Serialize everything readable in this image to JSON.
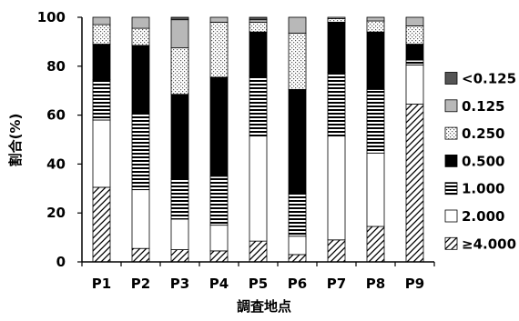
{
  "chart_data": {
    "type": "bar",
    "stacked": true,
    "categories": [
      "P1",
      "P2",
      "P3",
      "P4",
      "P5",
      "P6",
      "P7",
      "P8",
      "P9"
    ],
    "xlabel": "調査地点",
    "ylabel": "割合(%)",
    "ylim": [
      0,
      100
    ],
    "yticks": [
      "0",
      "20",
      "40",
      "60",
      "80",
      "100"
    ],
    "grid": false,
    "legend_position": "right",
    "series": [
      {
        "name": "≥4.000",
        "values": [
          30.5,
          5.5,
          5.0,
          4.5,
          8.5,
          3.0,
          9.0,
          14.5,
          64.5
        ],
        "pattern": "diag"
      },
      {
        "name": "2.000",
        "values": [
          27.5,
          24.0,
          12.5,
          10.5,
          43.0,
          7.5,
          42.5,
          30.0,
          16.0
        ],
        "pattern": "white"
      },
      {
        "name": "1.000",
        "values": [
          16.5,
          31.0,
          16.5,
          20.0,
          24.5,
          17.5,
          26.0,
          26.0,
          2.0
        ],
        "pattern": "hlines"
      },
      {
        "name": "0.500",
        "values": [
          14.5,
          28.0,
          34.5,
          40.5,
          18.0,
          42.5,
          20.5,
          23.5,
          6.5
        ],
        "pattern": "black"
      },
      {
        "name": "0.250",
        "values": [
          8.0,
          7.0,
          19.0,
          22.5,
          4.0,
          23.0,
          1.5,
          4.5,
          7.5
        ],
        "pattern": "dots"
      },
      {
        "name": "0.125",
        "values": [
          3.0,
          4.5,
          11.5,
          2.0,
          1.0,
          6.5,
          0.5,
          1.5,
          3.5
        ],
        "pattern": "gray"
      },
      {
        "name": "<0.125",
        "values": [
          0.0,
          0.0,
          1.0,
          0.0,
          1.0,
          0.0,
          0.0,
          0.0,
          0.0
        ],
        "pattern": "darkgray"
      }
    ]
  }
}
